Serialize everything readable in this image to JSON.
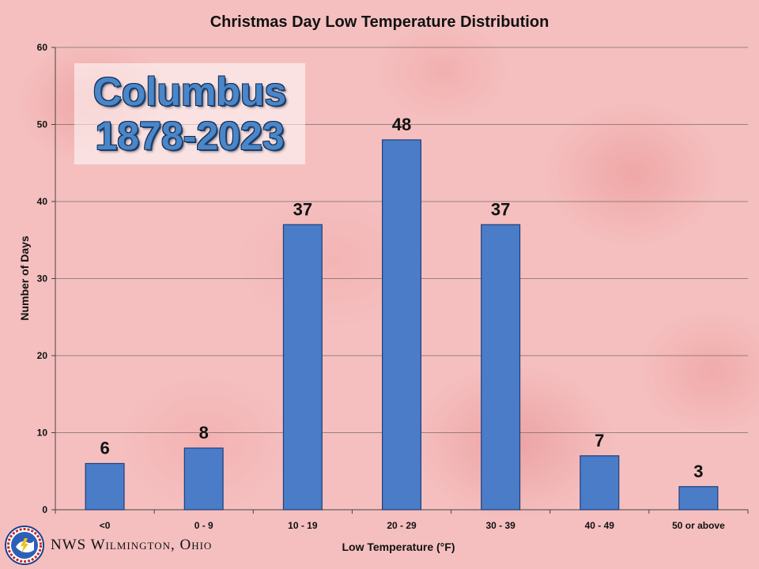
{
  "chart_data": {
    "type": "bar",
    "title": "Christmas Day Low Temperature Distribution",
    "xlabel": "Low Temperature (°F)",
    "ylabel": "Number of Days",
    "categories": [
      "<0",
      "0 - 9",
      "10 - 19",
      "20 - 29",
      "30 - 39",
      "40 - 49",
      "50 or above"
    ],
    "values": [
      6,
      8,
      37,
      48,
      37,
      7,
      3
    ],
    "ylim": [
      0,
      60
    ],
    "yticks": [
      0,
      10,
      20,
      30,
      40,
      50,
      60
    ],
    "grid": true,
    "bar_color": "#4a7cc8",
    "inset": {
      "line1": "Columbus",
      "line2": "1878-2023"
    }
  },
  "footer": {
    "text": "NWS Wilmington, Ohio",
    "logo_icon": "nws-logo-icon"
  }
}
